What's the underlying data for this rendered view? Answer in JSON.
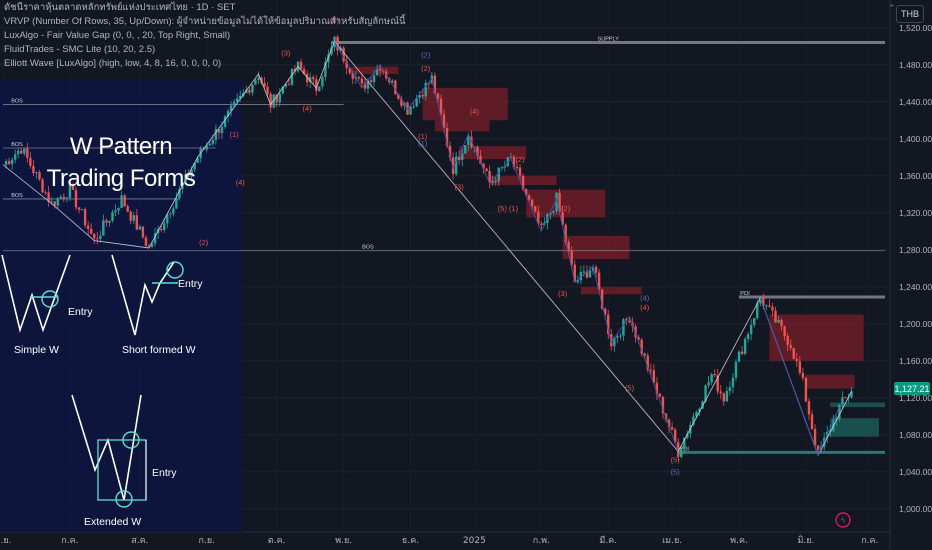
{
  "legend": {
    "title_line": "ดัชนีราคาหุ้นตลาดหลักทรัพย์แห่งประเทศไทย · 1D · SET",
    "indicators": [
      "VRVP (Number Of Rows, 35, Up/Down): ผู้จำหน่ายข้อมูลไม่ได้ให้ข้อมูลปริมาณสำหรับสัญลักษณ์นี้",
      "LuxAlgo - Fair Value Gap (0, 0, , 20, Top Right, Small)",
      "FluidTrades - SMC Lite  (10, 20, 2.5)",
      "Elliott Wave [LuxAlgo] (high, low, 4, 8, 16, 0, 0, 0, 0)"
    ]
  },
  "currency": "THB",
  "last_price": "1,127.21",
  "overlay": {
    "title_line1": "W Pattern",
    "title_line2": "Trading Forms",
    "simple_label": "Simple W",
    "short_label": "Short formed W",
    "extended_label": "Extended W",
    "entry_label": "Entry"
  },
  "colors": {
    "background": "#131722",
    "up": "#26a69a",
    "down": "#ef5350",
    "fvg_red": "#7a1f2a",
    "demand": "#1b5e57",
    "wave_line": "#d1d4dc",
    "wave_blue": "#3f51b5",
    "overlay_bg": "#0d1640",
    "highlight": "#5de0d0"
  },
  "chart_data": {
    "type": "candlestick",
    "y_axis": {
      "ticks": [
        1000,
        1040,
        1080,
        1120,
        1160,
        1200,
        1240,
        1280,
        1320,
        1360,
        1400,
        1440,
        1480,
        1520
      ],
      "tick_labels": [
        "1,000.00",
        "1,040.00",
        "1,080.00",
        "1,120.00",
        "1,160.00",
        "1,200.00",
        "1,240.00",
        "1,280.00",
        "1,320.00",
        "1,360.00",
        "1,400.00",
        "1,440.00",
        "1,480.00",
        "1,520.00"
      ],
      "range": [
        975,
        1550
      ]
    },
    "x_axis": {
      "labels": [
        "มิ.ย.",
        "ก.ค.",
        "ส.ค.",
        "ก.ย.",
        "ต.ค.",
        "พ.ย.",
        "ธ.ค.",
        "2025",
        "ก.พ.",
        "มี.ค.",
        "เม.ย.",
        "พ.ค.",
        "มิ.ย.",
        "ก.ค."
      ],
      "label_index": [
        0,
        22,
        45,
        67,
        90,
        112,
        134,
        155,
        177,
        199,
        220,
        242,
        264,
        285
      ]
    },
    "pivots": [
      {
        "i": 0,
        "p": 1372
      },
      {
        "i": 6,
        "p": 1390
      },
      {
        "i": 16,
        "p": 1330
      },
      {
        "i": 22,
        "p": 1345
      },
      {
        "i": 30,
        "p": 1290
      },
      {
        "i": 39,
        "p": 1335
      },
      {
        "i": 48,
        "p": 1282
      },
      {
        "i": 64,
        "p": 1380
      },
      {
        "i": 84,
        "p": 1470
      },
      {
        "i": 88,
        "p": 1437
      },
      {
        "i": 97,
        "p": 1478
      },
      {
        "i": 103,
        "p": 1455
      },
      {
        "i": 109,
        "p": 1505
      },
      {
        "i": 118,
        "p": 1455
      },
      {
        "i": 124,
        "p": 1480
      },
      {
        "i": 133,
        "p": 1432
      },
      {
        "i": 141,
        "p": 1465
      },
      {
        "i": 148,
        "p": 1368
      },
      {
        "i": 153,
        "p": 1405
      },
      {
        "i": 160,
        "p": 1352
      },
      {
        "i": 167,
        "p": 1378
      },
      {
        "i": 177,
        "p": 1300
      },
      {
        "i": 182,
        "p": 1335
      },
      {
        "i": 188,
        "p": 1245
      },
      {
        "i": 194,
        "p": 1262
      },
      {
        "i": 200,
        "p": 1180
      },
      {
        "i": 206,
        "p": 1208
      },
      {
        "i": 222,
        "p": 1062
      },
      {
        "i": 233,
        "p": 1145
      },
      {
        "i": 237,
        "p": 1120
      },
      {
        "i": 249,
        "p": 1228
      },
      {
        "i": 259,
        "p": 1178
      },
      {
        "i": 263,
        "p": 1135
      },
      {
        "i": 268,
        "p": 1058
      },
      {
        "i": 275,
        "p": 1110
      },
      {
        "i": 279,
        "p": 1127
      }
    ],
    "levels": [
      {
        "label": "SUPPLY",
        "price": 1504,
        "from": 108,
        "to": 290
      },
      {
        "label": "BOS",
        "price": 1437,
        "from": 0,
        "to": 112
      },
      {
        "label": "BOS",
        "price": 1390,
        "from": 0,
        "to": 70
      },
      {
        "label": "BOS",
        "price": 1335,
        "from": 0,
        "to": 58
      },
      {
        "label": "BOS",
        "price": 1279,
        "from": 0,
        "to": 290
      },
      {
        "label": "POI",
        "price": 1229,
        "from": 242,
        "to": 290
      },
      {
        "label": "POI",
        "price": 1061,
        "from": 222,
        "to": 290
      }
    ],
    "fvg_zones": [
      {
        "from": 114,
        "to": 130,
        "top": 1478,
        "bottom": 1470
      },
      {
        "from": 138,
        "to": 166,
        "top": 1455,
        "bottom": 1420
      },
      {
        "from": 142,
        "to": 160,
        "top": 1420,
        "bottom": 1408
      },
      {
        "from": 150,
        "to": 172,
        "top": 1392,
        "bottom": 1378
      },
      {
        "from": 160,
        "to": 182,
        "top": 1360,
        "bottom": 1350
      },
      {
        "from": 172,
        "to": 198,
        "top": 1345,
        "bottom": 1315
      },
      {
        "from": 184,
        "to": 206,
        "top": 1295,
        "bottom": 1270
      },
      {
        "from": 190,
        "to": 210,
        "top": 1240,
        "bottom": 1232
      },
      {
        "from": 252,
        "to": 283,
        "top": 1210,
        "bottom": 1160
      },
      {
        "from": 264,
        "to": 280,
        "top": 1145,
        "bottom": 1130
      }
    ],
    "demand_zones": [
      {
        "from": 272,
        "to": 288,
        "top": 1098,
        "bottom": 1078
      },
      {
        "from": 272,
        "to": 290,
        "top": 1115,
        "bottom": 1110
      }
    ],
    "wave_labels": [
      {
        "t": "(5)",
        "i": 109,
        "p": 1525,
        "c": "red"
      },
      {
        "t": "(3)",
        "i": 93,
        "p": 1490,
        "c": "red"
      },
      {
        "t": "(4)",
        "i": 100,
        "p": 1430,
        "c": "red"
      },
      {
        "t": "(1)",
        "i": 76,
        "p": 1402,
        "c": "red"
      },
      {
        "t": "(2)",
        "i": 66,
        "p": 1285,
        "c": "red"
      },
      {
        "t": "(4)",
        "i": 78,
        "p": 1350,
        "c": "red"
      },
      {
        "t": "(2)",
        "i": 139,
        "p": 1488,
        "c": "blue"
      },
      {
        "t": "(2)",
        "i": 139,
        "p": 1473,
        "c": "red"
      },
      {
        "t": "(4)",
        "i": 155,
        "p": 1427,
        "c": "red"
      },
      {
        "t": "(1)",
        "i": 138,
        "p": 1400,
        "c": "red"
      },
      {
        "t": "(1)",
        "i": 138,
        "p": 1392,
        "c": "blue"
      },
      {
        "t": "(2)",
        "i": 170,
        "p": 1375,
        "c": "red"
      },
      {
        "t": "(3)",
        "i": 150,
        "p": 1345,
        "c": "red"
      },
      {
        "t": "(5) (1)",
        "i": 166,
        "p": 1322,
        "c": "red"
      },
      {
        "t": "(2)",
        "i": 185,
        "p": 1322,
        "c": "red"
      },
      {
        "t": "(3)",
        "i": 184,
        "p": 1230,
        "c": "red"
      },
      {
        "t": "(4)",
        "i": 211,
        "p": 1215,
        "c": "red"
      },
      {
        "t": "(4)",
        "i": 211,
        "p": 1225,
        "c": "blue"
      },
      {
        "t": "(5)",
        "i": 206,
        "p": 1128,
        "c": "red"
      },
      {
        "t": "(5)",
        "i": 221,
        "p": 1050,
        "c": "red"
      },
      {
        "t": "(5)",
        "i": 221,
        "p": 1037,
        "c": "blue"
      }
    ]
  }
}
